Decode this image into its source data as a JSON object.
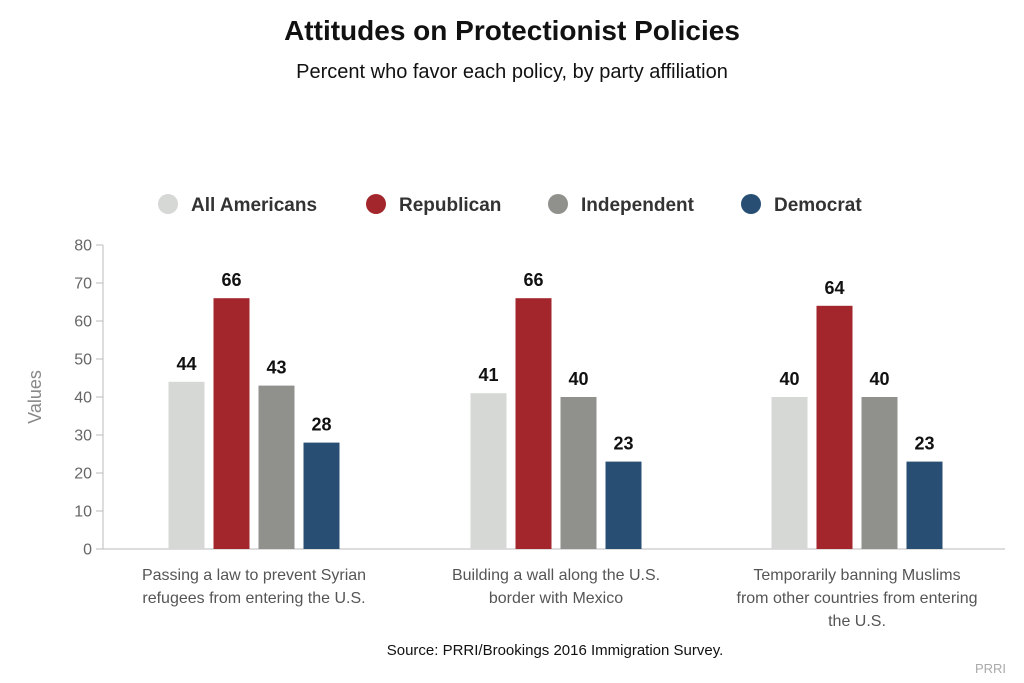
{
  "chart_data": {
    "type": "bar",
    "title": "Attitudes on Protectionist Policies",
    "subtitle": "Percent who favor each policy, by party affiliation",
    "ylabel": "Values",
    "xlabel": "",
    "ylim": [
      0,
      80
    ],
    "yticks": [
      0,
      10,
      20,
      30,
      40,
      50,
      60,
      70,
      80
    ],
    "grid": false,
    "legend_position": "top-center",
    "categories": [
      [
        "Passing a law to prevent Syrian",
        "refugees from entering the U.S."
      ],
      [
        "Building a wall along the U.S.",
        "border with Mexico"
      ],
      [
        "Temporarily banning Muslims",
        "from other countries from entering",
        "the U.S."
      ]
    ],
    "series": [
      {
        "name": "All Americans",
        "color": "#d5d8d4",
        "values": [
          44,
          41,
          40
        ]
      },
      {
        "name": "Republican",
        "color": "#a3262d",
        "values": [
          66,
          66,
          64
        ]
      },
      {
        "name": "Independent",
        "color": "#90918d",
        "values": [
          43,
          40,
          40
        ]
      },
      {
        "name": "Democrat",
        "color": "#284f73",
        "values": [
          28,
          23,
          23
        ]
      }
    ],
    "source": "Source: PRRI/Brookings 2016 Immigration Survey.",
    "credit": "PRRI"
  }
}
